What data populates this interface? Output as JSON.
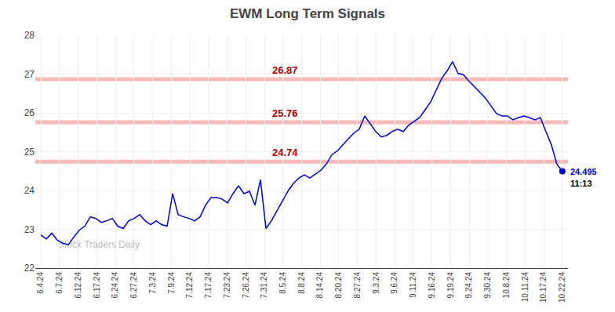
{
  "chart_data": {
    "type": "line",
    "title": "EWM Long Term Signals",
    "color": "#0000cc",
    "grid": true,
    "xlim": [
      -0.3,
      28.3
    ],
    "xticks": [
      {
        "value": 0,
        "label": "6.4.24"
      },
      {
        "value": 1,
        "label": "6.7.24"
      },
      {
        "value": 2,
        "label": "6.12.24"
      },
      {
        "value": 3,
        "label": "6.17.24"
      },
      {
        "value": 4,
        "label": "6.24.24"
      },
      {
        "value": 5,
        "label": "6.27.24"
      },
      {
        "value": 6,
        "label": "7.3.24"
      },
      {
        "value": 7,
        "label": "7.9.24"
      },
      {
        "value": 8,
        "label": "7.12.24"
      },
      {
        "value": 9,
        "label": "7.17.24"
      },
      {
        "value": 10,
        "label": "7.23.24"
      },
      {
        "value": 11,
        "label": "7.26.24"
      },
      {
        "value": 12,
        "label": "7.31.24"
      },
      {
        "value": 13,
        "label": "8.5.24"
      },
      {
        "value": 14,
        "label": "8.8.24"
      },
      {
        "value": 15,
        "label": "8.14.24"
      },
      {
        "value": 16,
        "label": "8.20.24"
      },
      {
        "value": 17,
        "label": "8.27.24"
      },
      {
        "value": 18,
        "label": "9.3.24"
      },
      {
        "value": 19,
        "label": "9.6.24"
      },
      {
        "value": 20,
        "label": "9.11.24"
      },
      {
        "value": 21,
        "label": "9.16.24"
      },
      {
        "value": 22,
        "label": "9.19.24"
      },
      {
        "value": 23,
        "label": "9.24.24"
      },
      {
        "value": 24,
        "label": "9.30.24"
      },
      {
        "value": 25,
        "label": "10.8.24"
      },
      {
        "value": 26,
        "label": "10.11.24"
      },
      {
        "value": 27,
        "label": "10.17.24"
      },
      {
        "value": 28,
        "label": "10.22.24"
      }
    ],
    "ylim": [
      22,
      28
    ],
    "yticks": [
      22,
      23,
      24,
      25,
      26,
      27,
      28
    ],
    "values": [
      22.85,
      22.75,
      22.9,
      22.72,
      22.64,
      22.6,
      22.8,
      22.98,
      23.08,
      23.32,
      23.28,
      23.18,
      23.22,
      23.28,
      23.08,
      23.02,
      23.22,
      23.28,
      23.38,
      23.22,
      23.12,
      23.22,
      23.12,
      23.08,
      23.92,
      23.38,
      23.32,
      23.28,
      23.22,
      23.32,
      23.62,
      23.82,
      23.82,
      23.78,
      23.68,
      23.92,
      24.12,
      23.92,
      23.98,
      23.62,
      24.28,
      23.02,
      23.22,
      23.48,
      23.72,
      23.98,
      24.18,
      24.32,
      24.4,
      24.32,
      24.42,
      24.52,
      24.68,
      24.92,
      25.02,
      25.18,
      25.32,
      25.48,
      25.58,
      25.92,
      25.72,
      25.52,
      25.38,
      25.42,
      25.52,
      25.58,
      25.52,
      25.68,
      25.78,
      25.88,
      26.08,
      26.28,
      26.58,
      26.88,
      27.08,
      27.32,
      27.02,
      26.98,
      26.82,
      26.68,
      26.52,
      26.38,
      26.18,
      25.98,
      25.92,
      25.92,
      25.82,
      25.88,
      25.92,
      25.88,
      25.82,
      25.88,
      25.52,
      25.18,
      24.68,
      24.495
    ],
    "hlines": [
      {
        "value": 26.87,
        "text": "26.87",
        "color": "#f5b8b8",
        "text_color": "#aa0000"
      },
      {
        "value": 25.76,
        "text": "25.76",
        "color": "#f5b8b8",
        "text_color": "#aa0000"
      },
      {
        "value": 24.74,
        "text": "24.74",
        "color": "#f5b8b8",
        "text_color": "#aa0000"
      }
    ],
    "annotations": [
      {
        "text": "11:13",
        "color": "#000000"
      },
      {
        "text": "24.495",
        "color": "#0000cc"
      }
    ],
    "watermark": "Stock Traders Daily"
  }
}
